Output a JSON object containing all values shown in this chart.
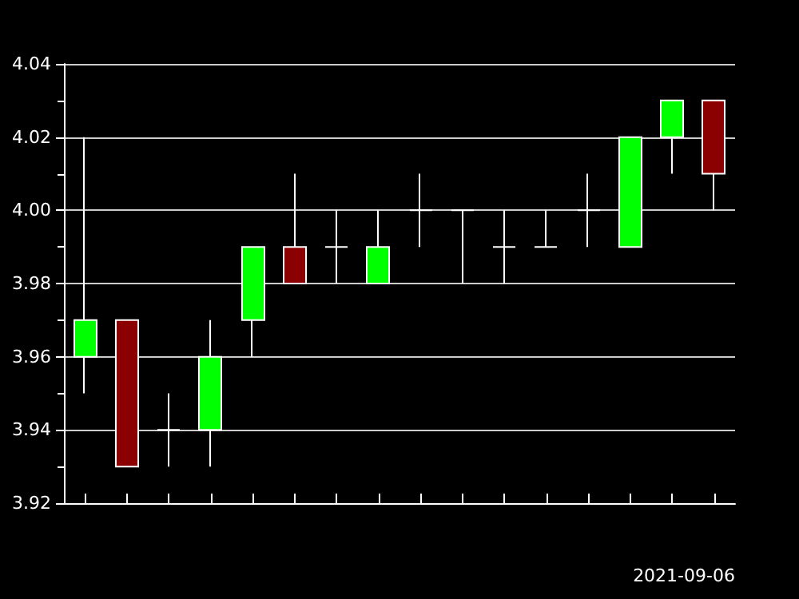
{
  "chart_data": {
    "type": "candlestick",
    "xlabel": "2021-09-06",
    "categories": [
      null,
      null,
      null,
      null,
      null,
      null,
      null,
      null,
      null,
      null,
      null,
      null,
      null,
      null,
      null,
      null
    ],
    "ohlc": [
      [
        3.96,
        4.02,
        3.95,
        3.97
      ],
      [
        3.97,
        3.97,
        3.93,
        3.93
      ],
      [
        3.94,
        3.95,
        3.93,
        3.94
      ],
      [
        3.94,
        3.97,
        3.93,
        3.96
      ],
      [
        3.97,
        3.99,
        3.96,
        3.99
      ],
      [
        3.99,
        4.01,
        3.98,
        3.98
      ],
      [
        3.99,
        4.0,
        3.98,
        3.99
      ],
      [
        3.98,
        4.0,
        3.98,
        3.99
      ],
      [
        4.0,
        4.01,
        3.99,
        4.0
      ],
      [
        4.0,
        4.0,
        3.98,
        4.0
      ],
      [
        3.99,
        4.0,
        3.98,
        3.99
      ],
      [
        3.99,
        4.0,
        3.99,
        3.99
      ],
      [
        4.0,
        4.01,
        3.99,
        4.0
      ],
      [
        3.99,
        4.02,
        3.99,
        4.02
      ],
      [
        4.02,
        4.03,
        4.01,
        4.03
      ],
      [
        4.03,
        4.03,
        4.0,
        4.01
      ]
    ],
    "colors": [
      "#00ff00",
      "#8b0000",
      "#ffffff",
      "#00ff00",
      "#00ff00",
      "#8b0000",
      "#ffffff",
      "#00ff00",
      "#ffffff",
      "#ffffff",
      "#ffffff",
      "#ffffff",
      "#ffffff",
      "#00ff00",
      "#00ff00",
      "#8b0000"
    ],
    "ylim": [
      3.92,
      4.04
    ],
    "yticks": [
      {
        "value": 3.92,
        "label": "3.92"
      },
      {
        "value": 3.94,
        "label": "3.94"
      },
      {
        "value": 3.96,
        "label": "3.96"
      },
      {
        "value": 3.98,
        "label": "3.98"
      },
      {
        "value": 4.0,
        "label": "4.00"
      },
      {
        "value": 4.02,
        "label": "4.02"
      },
      {
        "value": 4.04,
        "label": "4.04"
      }
    ],
    "grid": "y"
  }
}
